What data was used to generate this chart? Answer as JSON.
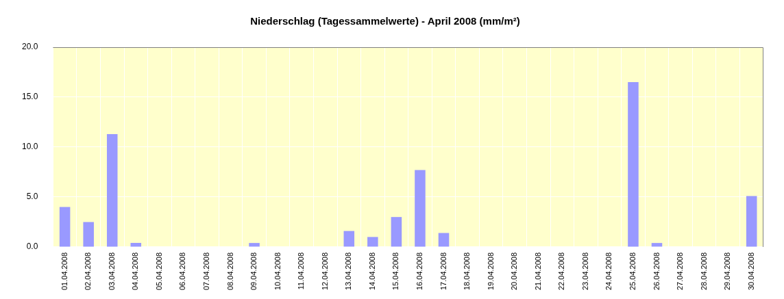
{
  "chart_data": {
    "type": "bar",
    "title": "Niederschlag (Tagessammelwerte) - April 2008 (mm/m²)",
    "categories": [
      "01.04.2008",
      "02.04.2008",
      "03.04.2008",
      "04.04.2008",
      "05.04.2008",
      "06.04.2008",
      "07.04.2008",
      "08.04.2008",
      "09.04.2008",
      "10.04.2008",
      "11.04.2008",
      "12.04.2008",
      "13.04.2008",
      "14.04.2008",
      "15.04.2008",
      "16.04.2008",
      "17.04.2008",
      "18.04.2008",
      "19.04.2008",
      "20.04.2008",
      "21.04.2008",
      "22.04.2008",
      "23.04.2008",
      "24.04.2008",
      "25.04.2008",
      "26.04.2008",
      "27.04.2008",
      "28.04.2008",
      "29.04.2008",
      "30.04.2008"
    ],
    "values": [
      4.0,
      2.5,
      11.3,
      0.4,
      0,
      0,
      0,
      0,
      0.4,
      0,
      0,
      0,
      1.6,
      1.0,
      3.0,
      7.7,
      1.4,
      0,
      0,
      0,
      0,
      0,
      0,
      0,
      16.5,
      0.4,
      0,
      0,
      0,
      5.1
    ],
    "color": "#9999ff",
    "ylim": [
      0,
      20
    ],
    "yticks": [
      {
        "value": 0,
        "label": "0.0"
      },
      {
        "value": 5,
        "label": "5.0"
      },
      {
        "value": 10,
        "label": "10.0"
      },
      {
        "value": 15,
        "label": "15.0"
      },
      {
        "value": 20,
        "label": "20.0"
      }
    ],
    "grid": true,
    "legend": false
  }
}
